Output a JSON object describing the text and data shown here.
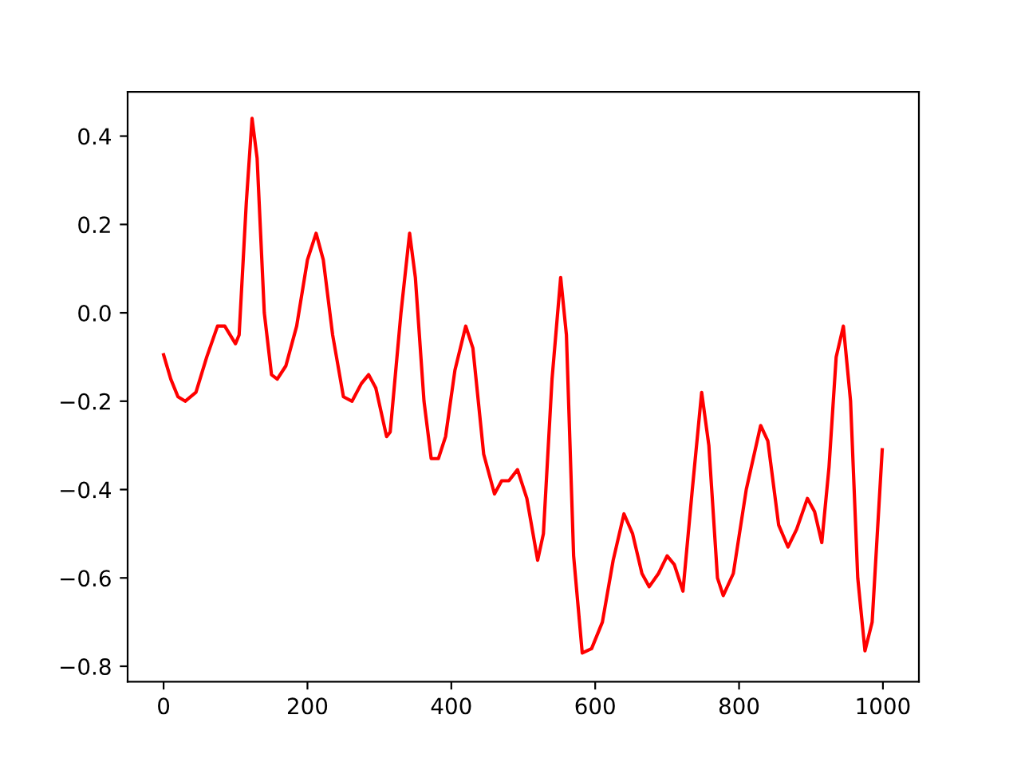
{
  "chart_data": {
    "type": "line",
    "x": [
      0,
      10,
      20,
      30,
      45,
      60,
      75,
      85,
      100,
      105,
      115,
      123,
      130,
      140,
      150,
      158,
      170,
      185,
      200,
      212,
      222,
      235,
      250,
      262,
      275,
      285,
      295,
      310,
      315,
      330,
      342,
      350,
      362,
      372,
      382,
      392,
      405,
      420,
      430,
      445,
      460,
      470,
      480,
      492,
      505,
      520,
      528,
      540,
      552,
      560,
      570,
      582,
      595,
      610,
      625,
      640,
      652,
      665,
      675,
      688,
      700,
      710,
      722,
      735,
      748,
      758,
      770,
      778,
      792,
      810,
      830,
      840,
      855,
      868,
      880,
      895,
      905,
      915,
      925,
      935,
      945,
      955,
      965,
      975,
      985,
      999
    ],
    "series": [
      {
        "color": "#ff0000",
        "values": [
          -0.095,
          -0.15,
          -0.19,
          -0.2,
          -0.18,
          -0.1,
          -0.03,
          -0.03,
          -0.07,
          -0.05,
          0.25,
          0.44,
          0.35,
          0.0,
          -0.14,
          -0.15,
          -0.12,
          -0.03,
          0.12,
          0.18,
          0.12,
          -0.05,
          -0.19,
          -0.2,
          -0.16,
          -0.14,
          -0.17,
          -0.28,
          -0.27,
          0.0,
          0.18,
          0.08,
          -0.2,
          -0.33,
          -0.33,
          -0.28,
          -0.13,
          -0.03,
          -0.08,
          -0.32,
          -0.41,
          -0.38,
          -0.38,
          -0.355,
          -0.42,
          -0.56,
          -0.5,
          -0.15,
          0.08,
          -0.05,
          -0.55,
          -0.77,
          -0.76,
          -0.7,
          -0.56,
          -0.455,
          -0.5,
          -0.59,
          -0.62,
          -0.59,
          -0.55,
          -0.57,
          -0.63,
          -0.4,
          -0.18,
          -0.3,
          -0.6,
          -0.64,
          -0.59,
          -0.4,
          -0.255,
          -0.29,
          -0.48,
          -0.53,
          -0.49,
          -0.42,
          -0.45,
          -0.52,
          -0.35,
          -0.1,
          -0.03,
          -0.2,
          -0.6,
          -0.765,
          -0.7,
          -0.31
        ]
      }
    ],
    "xlim": [
      -50,
      1050
    ],
    "ylim": [
      -0.835,
      0.5
    ],
    "xticks": [
      0,
      200,
      400,
      600,
      800,
      1000
    ],
    "yticks": [
      {
        "value": -0.8,
        "label": "−0.8"
      },
      {
        "value": -0.6,
        "label": "−0.6"
      },
      {
        "value": -0.4,
        "label": "−0.4"
      },
      {
        "value": -0.2,
        "label": "−0.2"
      },
      {
        "value": 0.0,
        "label": "0.0"
      },
      {
        "value": 0.2,
        "label": "0.2"
      },
      {
        "value": 0.4,
        "label": "0.4"
      }
    ],
    "grid": false,
    "legend": false
  }
}
